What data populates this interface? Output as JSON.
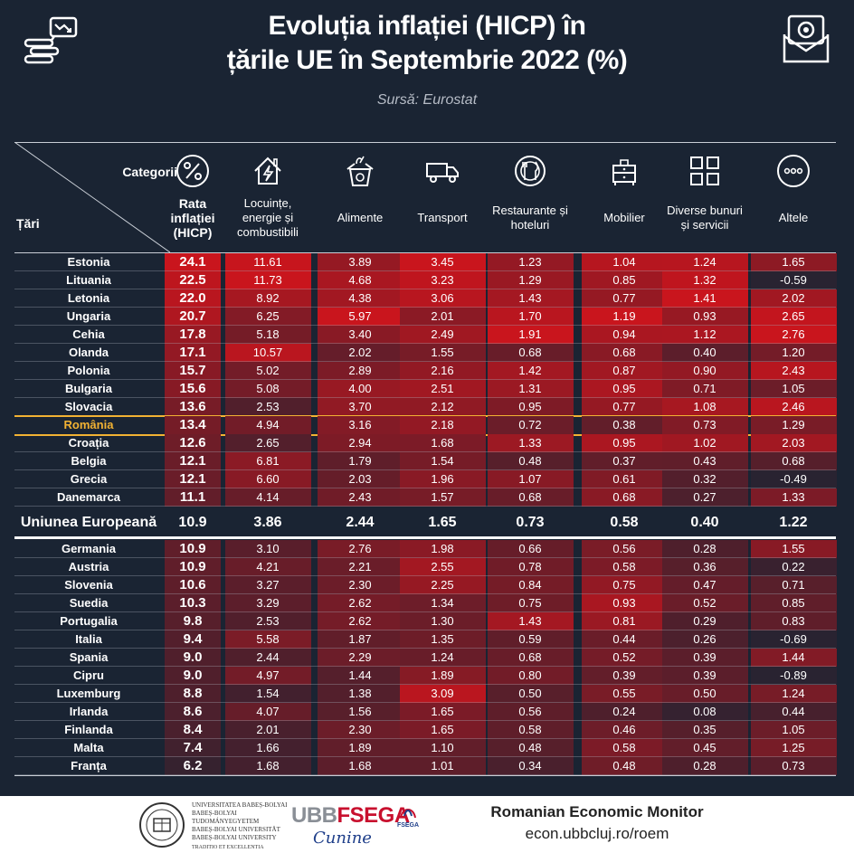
{
  "title_line1": "Evoluția inflației (HICP) în",
  "title_line2": "țările UE în Septembrie 2022 (%)",
  "source": "Sursă: Eurostat",
  "header": {
    "corner_top": "Categorii",
    "corner_bottom": "Țări"
  },
  "columns": [
    {
      "key": "rate",
      "label": [
        "Rata",
        "inflației",
        "(HICP)"
      ],
      "icon": "percent-icon"
    },
    {
      "key": "housing",
      "label": [
        "Locuințe,",
        "energie și",
        "combustibili"
      ],
      "icon": "house-energy-icon"
    },
    {
      "key": "food",
      "label": [
        "Alimente"
      ],
      "icon": "grocery-bag-icon"
    },
    {
      "key": "transport",
      "label": [
        "Transport"
      ],
      "icon": "truck-icon"
    },
    {
      "key": "restaurants",
      "label": [
        "Restaurante și",
        "hoteluri"
      ],
      "icon": "plate-cutlery-icon"
    },
    {
      "key": "furniture",
      "label": [
        "Mobilier"
      ],
      "icon": "furniture-icon"
    },
    {
      "key": "misc",
      "label": [
        "Diverse bunuri",
        "și servicii"
      ],
      "icon": "grid-icon"
    },
    {
      "key": "other",
      "label": [
        "Altele"
      ],
      "icon": "dots-icon"
    }
  ],
  "chart_data": {
    "type": "table",
    "title": "Evoluția inflației (HICP) în țările UE în Septembrie 2022 (%)",
    "columns": [
      "Rata inflației (HICP)",
      "Locuințe, energie și combustibili",
      "Alimente",
      "Transport",
      "Restaurante și hoteluri",
      "Mobilier",
      "Diverse bunuri și servicii",
      "Altele"
    ],
    "rows": [
      {
        "country": "Estonia",
        "values": [
          "24.1",
          "11.61",
          "3.89",
          "3.45",
          "1.23",
          "1.04",
          "1.24",
          "1.65"
        ]
      },
      {
        "country": "Lituania",
        "values": [
          "22.5",
          "11.73",
          "4.68",
          "3.23",
          "1.29",
          "0.85",
          "1.32",
          "-0.59"
        ]
      },
      {
        "country": "Letonia",
        "values": [
          "22.0",
          "8.92",
          "4.38",
          "3.06",
          "1.43",
          "0.77",
          "1.41",
          "2.02"
        ]
      },
      {
        "country": "Ungaria",
        "values": [
          "20.7",
          "6.25",
          "5.97",
          "2.01",
          "1.70",
          "1.19",
          "0.93",
          "2.65"
        ]
      },
      {
        "country": "Cehia",
        "values": [
          "17.8",
          "5.18",
          "3.40",
          "2.49",
          "1.91",
          "0.94",
          "1.12",
          "2.76"
        ]
      },
      {
        "country": "Olanda",
        "values": [
          "17.1",
          "10.57",
          "2.02",
          "1.55",
          "0.68",
          "0.68",
          "0.40",
          "1.20"
        ]
      },
      {
        "country": "Polonia",
        "values": [
          "15.7",
          "5.02",
          "2.89",
          "2.16",
          "1.42",
          "0.87",
          "0.90",
          "2.43"
        ]
      },
      {
        "country": "Bulgaria",
        "values": [
          "15.6",
          "5.08",
          "4.00",
          "2.51",
          "1.31",
          "0.95",
          "0.71",
          "1.05"
        ]
      },
      {
        "country": "Slovacia",
        "values": [
          "13.6",
          "2.53",
          "3.70",
          "2.12",
          "0.95",
          "0.77",
          "1.08",
          "2.46"
        ]
      },
      {
        "country": "România",
        "values": [
          "13.4",
          "4.94",
          "3.16",
          "2.18",
          "0.72",
          "0.38",
          "0.73",
          "1.29"
        ],
        "highlight": true
      },
      {
        "country": "Croația",
        "values": [
          "12.6",
          "2.65",
          "2.94",
          "1.68",
          "1.33",
          "0.95",
          "1.02",
          "2.03"
        ]
      },
      {
        "country": "Belgia",
        "values": [
          "12.1",
          "6.81",
          "1.79",
          "1.54",
          "0.48",
          "0.37",
          "0.43",
          "0.68"
        ]
      },
      {
        "country": "Grecia",
        "values": [
          "12.1",
          "6.60",
          "2.03",
          "1.96",
          "1.07",
          "0.61",
          "0.32",
          "-0.49"
        ]
      },
      {
        "country": "Danemarca",
        "values": [
          "11.1",
          "4.14",
          "2.43",
          "1.57",
          "0.68",
          "0.68",
          "0.27",
          "1.33"
        ]
      },
      {
        "country": "Uniunea Europeană",
        "values": [
          "10.9",
          "3.86",
          "2.44",
          "1.65",
          "0.73",
          "0.58",
          "0.40",
          "1.22"
        ],
        "eu": true
      },
      {
        "country": "Germania",
        "values": [
          "10.9",
          "3.10",
          "2.76",
          "1.98",
          "0.66",
          "0.56",
          "0.28",
          "1.55"
        ]
      },
      {
        "country": "Austria",
        "values": [
          "10.9",
          "4.21",
          "2.21",
          "2.55",
          "0.78",
          "0.58",
          "0.36",
          "0.22"
        ]
      },
      {
        "country": "Slovenia",
        "values": [
          "10.6",
          "3.27",
          "2.30",
          "2.25",
          "0.84",
          "0.75",
          "0.47",
          "0.71"
        ]
      },
      {
        "country": "Suedia",
        "values": [
          "10.3",
          "3.29",
          "2.62",
          "1.34",
          "0.75",
          "0.93",
          "0.52",
          "0.85"
        ]
      },
      {
        "country": "Portugalia",
        "values": [
          "9.8",
          "2.53",
          "2.62",
          "1.30",
          "1.43",
          "0.81",
          "0.29",
          "0.83"
        ]
      },
      {
        "country": "Italia",
        "values": [
          "9.4",
          "5.58",
          "1.87",
          "1.35",
          "0.59",
          "0.44",
          "0.26",
          "-0.69"
        ]
      },
      {
        "country": "Spania",
        "values": [
          "9.0",
          "2.44",
          "2.29",
          "1.24",
          "0.68",
          "0.52",
          "0.39",
          "1.44"
        ]
      },
      {
        "country": "Cipru",
        "values": [
          "9.0",
          "4.97",
          "1.44",
          "1.89",
          "0.80",
          "0.39",
          "0.39",
          "-0.89"
        ]
      },
      {
        "country": "Luxemburg",
        "values": [
          "8.8",
          "1.54",
          "1.38",
          "3.09",
          "0.50",
          "0.55",
          "0.50",
          "1.24"
        ]
      },
      {
        "country": "Irlanda",
        "values": [
          "8.6",
          "4.07",
          "1.56",
          "1.65",
          "0.56",
          "0.24",
          "0.08",
          "0.44"
        ]
      },
      {
        "country": "Finlanda",
        "values": [
          "8.4",
          "2.01",
          "2.30",
          "1.65",
          "0.58",
          "0.46",
          "0.35",
          "1.05"
        ]
      },
      {
        "country": "Malta",
        "values": [
          "7.4",
          "1.66",
          "1.89",
          "1.10",
          "0.48",
          "0.58",
          "0.45",
          "1.25"
        ]
      },
      {
        "country": "Franța",
        "values": [
          "6.2",
          "1.68",
          "1.68",
          "1.01",
          "0.34",
          "0.48",
          "0.28",
          "0.73"
        ]
      }
    ]
  },
  "colors": {
    "background": "#1a2433",
    "heat_max": "#d0141c",
    "highlight": "#f2b233"
  },
  "footer": {
    "uni_lines": [
      "UNIVERSITATEA BABEȘ-BOLYAI",
      "BABEȘ-BOLYAI TUDOMÁNYEGYETEM",
      "BABEȘ-BOLYAI UNIVERSITÄT",
      "BABEȘ-BOLYAI UNIVERSITY",
      "TRADITIO ET EXCELLENTIA"
    ],
    "ubb": "UBB",
    "fsega": "FSEGA",
    "fsega_small": "FSEGA",
    "signature": "Cunine",
    "monitor_title": "Romanian Economic Monitor",
    "monitor_url": "econ.ubbcluj.ro/roem"
  }
}
